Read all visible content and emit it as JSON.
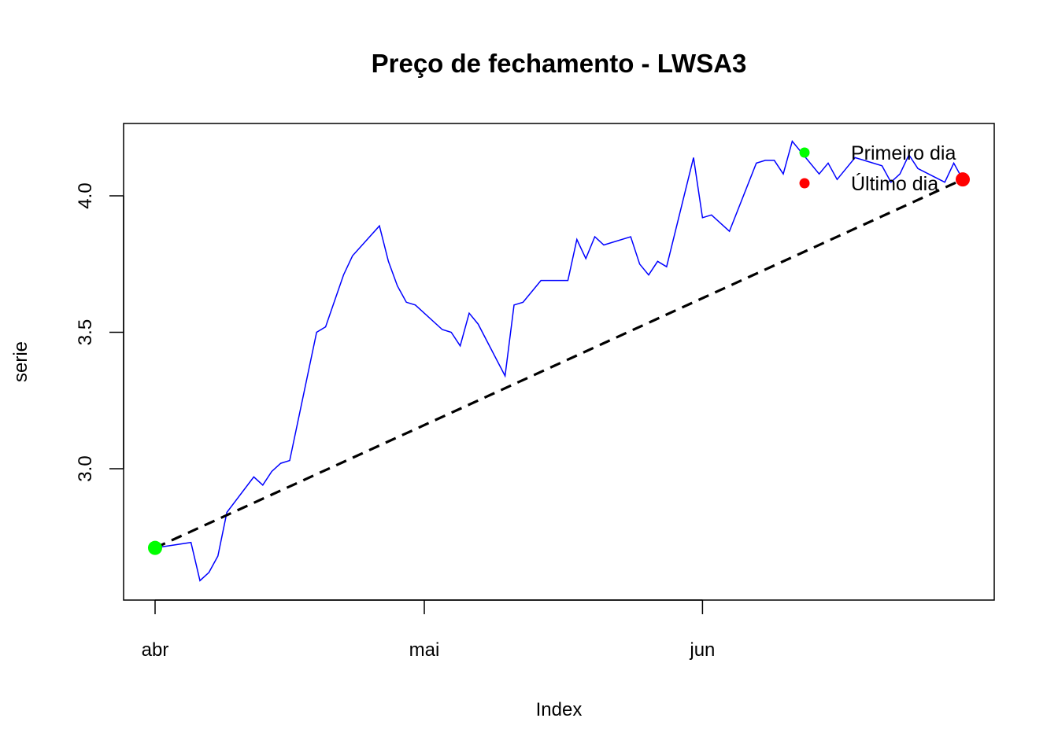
{
  "chart_data": {
    "type": "line",
    "title": "Preço de fechamento - LWSA3",
    "xlabel": "Index",
    "ylabel": "serie",
    "x_ticks": [
      "abr",
      "mai",
      "jun"
    ],
    "y_ticks": [
      "3.0",
      "3.5",
      "4.0"
    ],
    "ylim": [
      2.58,
      4.26
    ],
    "grid": false,
    "legend_position": "top-right",
    "series": [
      {
        "color": "#0000ff",
        "x": [
          "2021-04-01",
          "2021-04-05",
          "2021-04-06",
          "2021-04-07",
          "2021-04-08",
          "2021-04-09",
          "2021-04-12",
          "2021-04-13",
          "2021-04-14",
          "2021-04-15",
          "2021-04-16",
          "2021-04-19",
          "2021-04-20",
          "2021-04-22",
          "2021-04-23",
          "2021-04-26",
          "2021-04-27",
          "2021-04-28",
          "2021-04-29",
          "2021-04-30",
          "2021-05-03",
          "2021-05-04",
          "2021-05-05",
          "2021-05-06",
          "2021-05-07",
          "2021-05-10",
          "2021-05-11",
          "2021-05-12",
          "2021-05-13",
          "2021-05-14",
          "2021-05-17",
          "2021-05-18",
          "2021-05-19",
          "2021-05-20",
          "2021-05-21",
          "2021-05-24",
          "2021-05-25",
          "2021-05-26",
          "2021-05-27",
          "2021-05-28",
          "2021-05-31",
          "2021-06-01",
          "2021-06-02",
          "2021-06-04",
          "2021-06-07",
          "2021-06-08",
          "2021-06-09",
          "2021-06-10",
          "2021-06-11",
          "2021-06-14",
          "2021-06-15",
          "2021-06-16",
          "2021-06-17",
          "2021-06-18",
          "2021-06-21",
          "2021-06-22",
          "2021-06-23",
          "2021-06-24",
          "2021-06-25",
          "2021-06-28",
          "2021-06-29",
          "2021-06-30"
        ],
        "values": [
          2.71,
          2.73,
          2.59,
          2.62,
          2.68,
          2.84,
          2.97,
          2.94,
          2.99,
          3.02,
          3.03,
          3.5,
          3.52,
          3.71,
          3.78,
          3.89,
          3.76,
          3.67,
          3.61,
          3.6,
          3.51,
          3.5,
          3.45,
          3.57,
          3.53,
          3.34,
          3.6,
          3.61,
          3.65,
          3.69,
          3.69,
          3.84,
          3.77,
          3.85,
          3.82,
          3.85,
          3.75,
          3.71,
          3.76,
          3.74,
          4.14,
          3.92,
          3.93,
          3.87,
          4.12,
          4.13,
          4.13,
          4.08,
          4.2,
          4.08,
          4.12,
          4.06,
          4.1,
          4.14,
          4.11,
          4.05,
          4.08,
          4.15,
          4.1,
          4.05,
          4.12,
          4.06
        ]
      }
    ],
    "trend_line": {
      "start": {
        "x": "2021-04-01",
        "y": 2.71
      },
      "end": {
        "x": "2021-06-30",
        "y": 4.06
      },
      "color": "#000000",
      "style": "dashed"
    },
    "highlight_points": [
      {
        "label": "Primeiro dia",
        "x": "2021-04-01",
        "y": 2.71,
        "color": "#00ff00"
      },
      {
        "label": "Último dia",
        "x": "2021-06-30",
        "y": 4.06,
        "color": "#ff0000"
      }
    ],
    "legend": [
      {
        "label": "Primeiro dia",
        "color": "#00ff00"
      },
      {
        "label": "Último dia",
        "color": "#ff0000"
      }
    ]
  }
}
